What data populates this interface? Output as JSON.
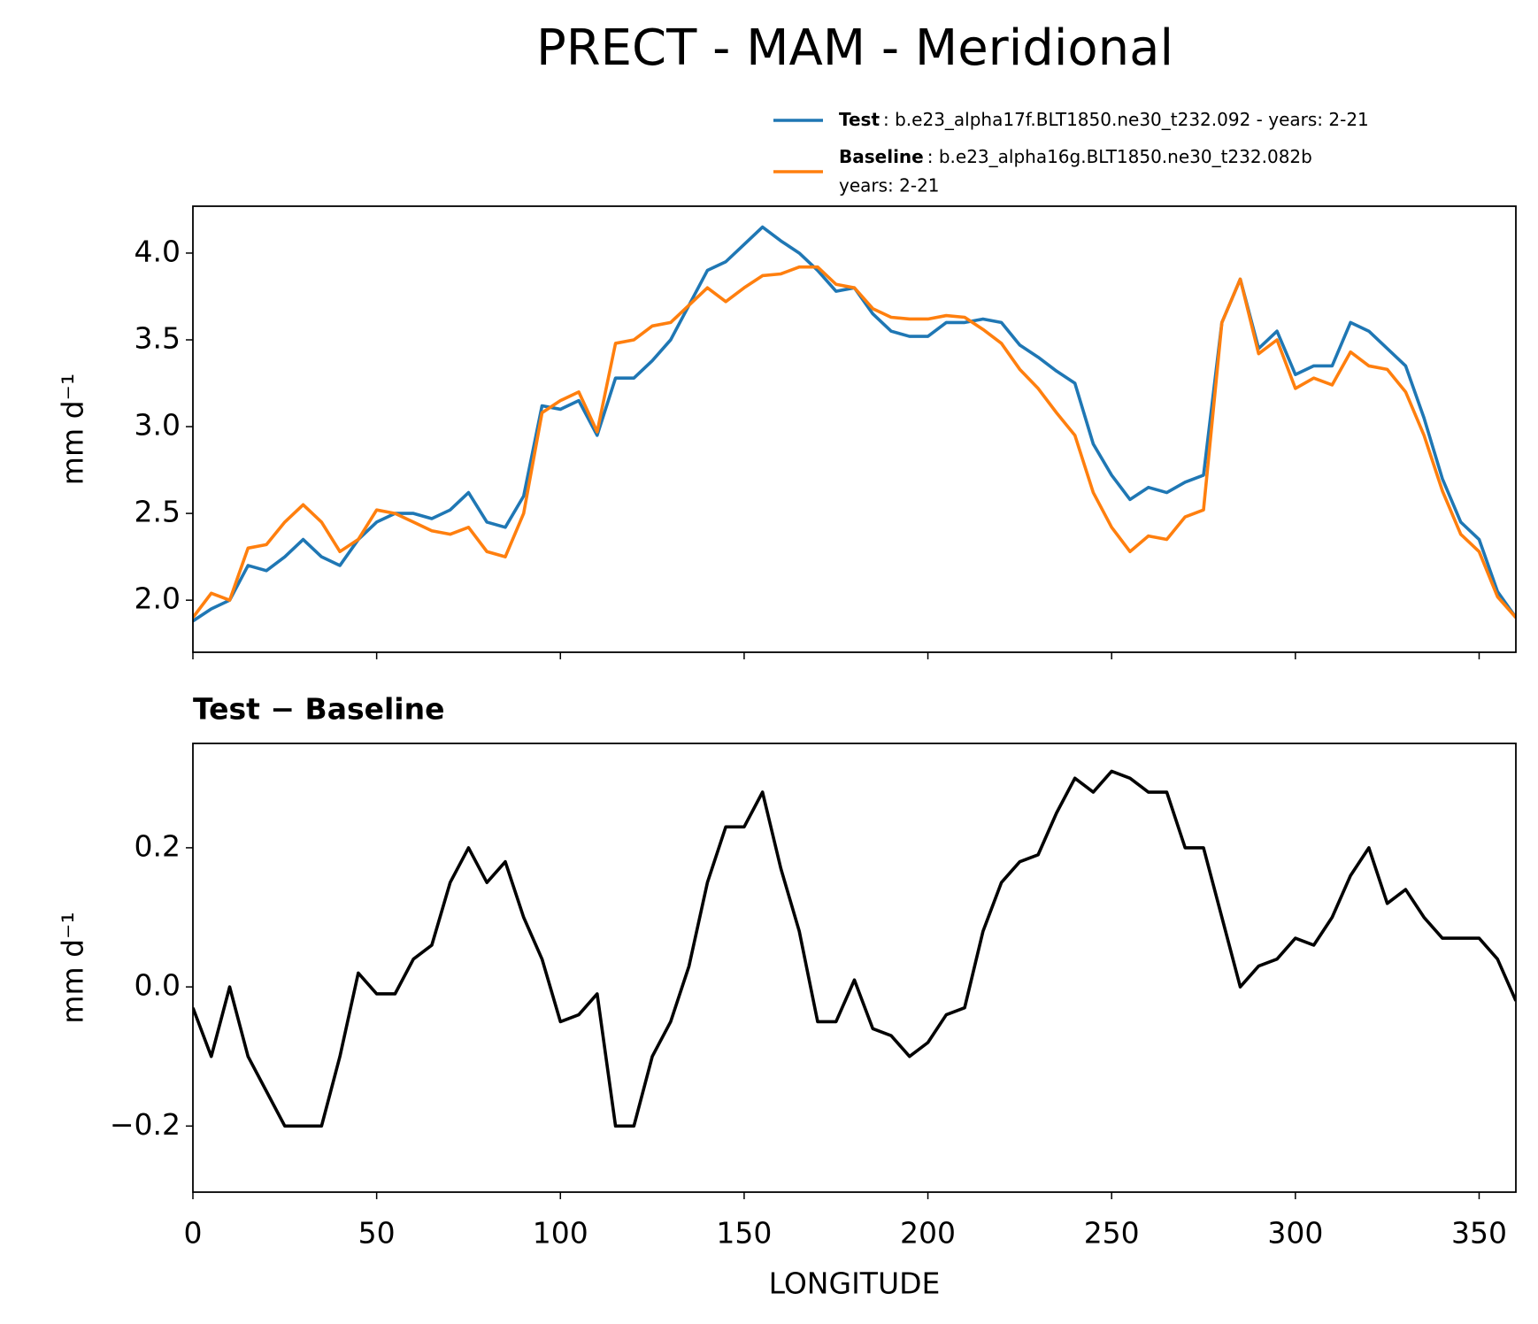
{
  "title": "PRECT - MAM - Meridional",
  "chart_data": [
    {
      "type": "line",
      "ylabel": "mm d⁻¹",
      "ylim": [
        1.7,
        4.27
      ],
      "yticks": [
        {
          "value": 2,
          "label": "2.0"
        },
        2.5,
        {
          "value": 3,
          "label": "3.0"
        },
        3.5,
        {
          "value": 4,
          "label": "4.0"
        }
      ],
      "x": [
        0,
        5,
        10,
        15,
        20,
        25,
        30,
        35,
        40,
        45,
        50,
        55,
        60,
        65,
        70,
        75,
        80,
        85,
        90,
        95,
        100,
        105,
        110,
        115,
        120,
        125,
        130,
        135,
        140,
        145,
        150,
        155,
        160,
        165,
        170,
        175,
        180,
        185,
        190,
        195,
        200,
        205,
        210,
        215,
        220,
        225,
        230,
        235,
        240,
        245,
        250,
        255,
        260,
        265,
        270,
        275,
        280,
        285,
        290,
        295,
        300,
        305,
        310,
        315,
        320,
        325,
        330,
        335,
        340,
        345,
        350,
        355,
        360
      ],
      "series": [
        {
          "name": "Test",
          "description": [
            ": b.e23_alpha17f.BLT1850.ne30_t232.092 - years: 2-21"
          ],
          "color": "#1f77b4",
          "values": [
            1.88,
            1.95,
            2.0,
            2.2,
            2.17,
            2.25,
            2.35,
            2.25,
            2.2,
            2.35,
            2.45,
            2.5,
            2.5,
            2.47,
            2.52,
            2.62,
            2.45,
            2.42,
            2.6,
            3.12,
            3.1,
            3.15,
            2.95,
            3.28,
            3.28,
            3.38,
            3.5,
            3.7,
            3.9,
            3.95,
            4.05,
            4.15,
            4.07,
            4.0,
            3.9,
            3.78,
            3.8,
            3.65,
            3.55,
            3.52,
            3.52,
            3.6,
            3.6,
            3.62,
            3.6,
            3.47,
            3.4,
            3.32,
            3.25,
            2.9,
            2.72,
            2.58,
            2.65,
            2.62,
            2.68,
            2.72,
            3.6,
            3.85,
            3.45,
            3.55,
            3.3,
            3.35,
            3.35,
            3.6,
            3.55,
            3.45,
            3.35,
            3.05,
            2.7,
            2.45,
            2.35,
            2.05,
            1.9
          ]
        },
        {
          "name": "Baseline",
          "description": [
            ": b.e23_alpha16g.BLT1850.ne30_t232.082b",
            "years: 2-21"
          ],
          "color": "#ff7f0e",
          "values": [
            1.9,
            2.04,
            2.0,
            2.3,
            2.32,
            2.45,
            2.55,
            2.45,
            2.28,
            2.35,
            2.52,
            2.5,
            2.45,
            2.4,
            2.38,
            2.42,
            2.28,
            2.25,
            2.5,
            3.08,
            3.15,
            3.2,
            2.97,
            3.48,
            3.5,
            3.58,
            3.6,
            3.7,
            3.8,
            3.72,
            3.8,
            3.87,
            3.88,
            3.92,
            3.92,
            3.82,
            3.8,
            3.68,
            3.63,
            3.62,
            3.62,
            3.64,
            3.63,
            3.56,
            3.48,
            3.33,
            3.22,
            3.08,
            2.95,
            2.62,
            2.42,
            2.28,
            2.37,
            2.35,
            2.48,
            2.52,
            3.6,
            3.85,
            3.42,
            3.5,
            3.22,
            3.28,
            3.24,
            3.43,
            3.35,
            3.33,
            3.2,
            2.95,
            2.63,
            2.38,
            2.28,
            2.02,
            1.9
          ]
        }
      ]
    },
    {
      "type": "line",
      "subtitle": "Test − Baseline",
      "xlabel": "LONGITUDE",
      "ylabel": "mm d⁻¹",
      "xlim": [
        0,
        360
      ],
      "xticks": [
        0,
        50,
        100,
        150,
        200,
        250,
        300,
        350
      ],
      "ylim": [
        -0.295,
        0.35
      ],
      "yticks": [
        {
          "value": -0.2,
          "label": "−0.2"
        },
        {
          "value": 0,
          "label": "0.0"
        },
        0.2
      ],
      "x": [
        0,
        5,
        10,
        15,
        20,
        25,
        30,
        35,
        40,
        45,
        50,
        55,
        60,
        65,
        70,
        75,
        80,
        85,
        90,
        95,
        100,
        105,
        110,
        115,
        120,
        125,
        130,
        135,
        140,
        145,
        150,
        155,
        160,
        165,
        170,
        175,
        180,
        185,
        190,
        195,
        200,
        205,
        210,
        215,
        220,
        225,
        230,
        235,
        240,
        245,
        250,
        255,
        260,
        265,
        270,
        275,
        280,
        285,
        290,
        295,
        300,
        305,
        310,
        315,
        320,
        325,
        330,
        335,
        340,
        345,
        350,
        355,
        360
      ],
      "series": [
        {
          "color": "#000000",
          "values": [
            -0.03,
            -0.1,
            0.0,
            -0.1,
            -0.15,
            -0.2,
            -0.2,
            -0.2,
            -0.1,
            0.02,
            -0.01,
            -0.01,
            0.04,
            0.06,
            0.15,
            0.2,
            0.15,
            0.18,
            0.1,
            0.04,
            -0.05,
            -0.04,
            -0.01,
            -0.2,
            -0.2,
            -0.1,
            -0.05,
            0.03,
            0.15,
            0.23,
            0.23,
            0.28,
            0.17,
            0.08,
            -0.05,
            -0.05,
            0.01,
            -0.06,
            -0.07,
            -0.1,
            -0.08,
            -0.04,
            -0.03,
            0.08,
            0.15,
            0.18,
            0.19,
            0.25,
            0.3,
            0.28,
            0.31,
            0.3,
            0.28,
            0.28,
            0.2,
            0.2,
            0.1,
            0.0,
            0.03,
            0.04,
            0.07,
            0.06,
            0.1,
            0.16,
            0.2,
            0.12,
            0.14,
            0.1,
            0.07,
            0.07,
            0.07,
            0.04,
            -0.02
          ]
        }
      ]
    }
  ]
}
